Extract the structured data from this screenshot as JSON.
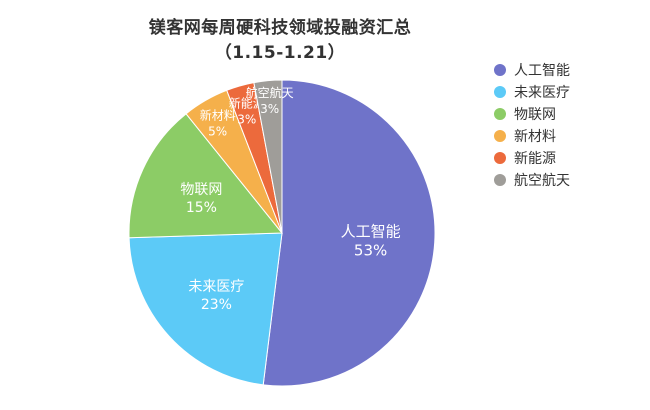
{
  "chart_data": {
    "type": "pie",
    "title": "镁客网每周硬科技领域投融资汇总",
    "subtitle": "（1.15-1.21）",
    "categories": [
      "人工智能",
      "未来医疗",
      "物联网",
      "新材料",
      "新能源",
      "航空航天"
    ],
    "values": [
      53,
      23,
      15,
      5,
      3,
      3
    ],
    "data_labels": [
      "53%",
      "23%",
      "15%",
      "5%",
      "3%",
      "3%"
    ],
    "colors": [
      "#6f73c9",
      "#5ccaf7",
      "#8ccc66",
      "#f5b04b",
      "#ec6a3c",
      "#9f9d99"
    ],
    "legend_position": "right"
  }
}
